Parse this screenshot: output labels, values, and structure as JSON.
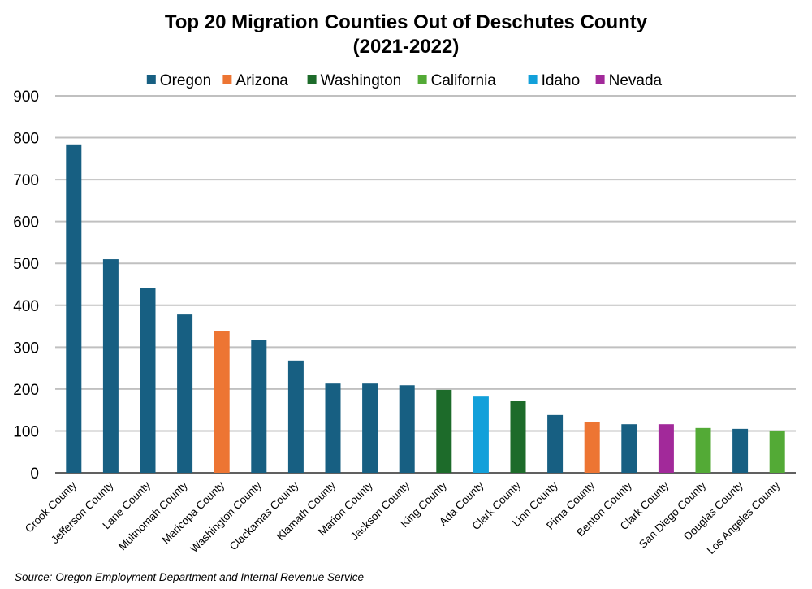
{
  "chart_data": {
    "type": "bar",
    "title": [
      "Top 20 Migration Counties Out of Deschutes County",
      "(2021-2022)"
    ],
    "xlabel": "",
    "ylabel": "",
    "ylim": [
      0,
      900
    ],
    "yticks": [
      0,
      100,
      200,
      300,
      400,
      500,
      600,
      700,
      800,
      900
    ],
    "grid": true,
    "legend_position": "top",
    "legend": [
      {
        "name": "Oregon",
        "color": "#175F82"
      },
      {
        "name": "Arizona",
        "color": "#ED7533"
      },
      {
        "name": "Washington",
        "color": "#1D6B2A"
      },
      {
        "name": "California",
        "color": "#53AA36"
      },
      {
        "name": "Idaho",
        "color": "#12A0DA"
      },
      {
        "name": "Nevada",
        "color": "#A2299A"
      }
    ],
    "categories": [
      "Crook County",
      "Jefferson County",
      "Lane County",
      "Multnomah County",
      "Maricopa County",
      "Washington County",
      "Clackamas County",
      "Klamath County",
      "Marion County",
      "Jackson County",
      "King County",
      "Ada County",
      "Clark County",
      "Linn County",
      "Pima County",
      "Benton County",
      "Clark County",
      "San Diego County",
      "Douglas County",
      "Los Angeles County"
    ],
    "states": [
      "Oregon",
      "Oregon",
      "Oregon",
      "Oregon",
      "Arizona",
      "Oregon",
      "Oregon",
      "Oregon",
      "Oregon",
      "Oregon",
      "Washington",
      "Idaho",
      "Washington",
      "Oregon",
      "Arizona",
      "Oregon",
      "Nevada",
      "California",
      "Oregon",
      "California"
    ],
    "values": [
      784,
      510,
      442,
      378,
      339,
      318,
      268,
      213,
      213,
      209,
      198,
      182,
      171,
      138,
      122,
      116,
      116,
      107,
      105,
      101
    ],
    "source": "Source: Oregon Employment Department and Internal Revenue Service"
  }
}
